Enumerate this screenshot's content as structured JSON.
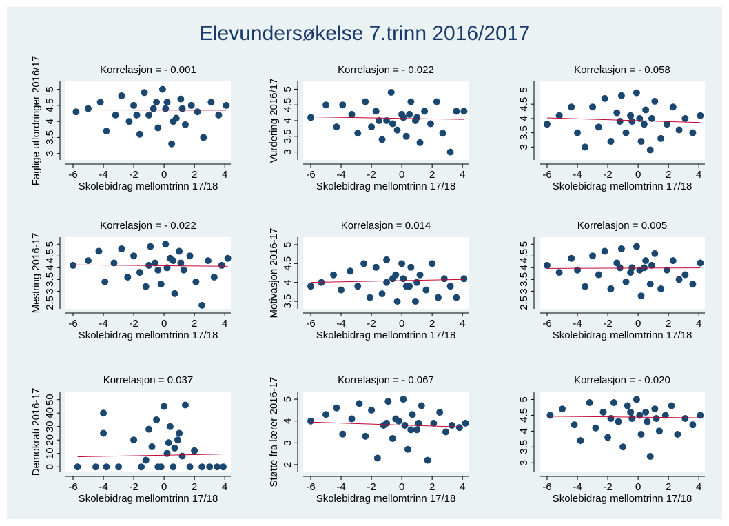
{
  "title": "Elevundersøkelse 7.trinn 2016/2017",
  "chart_data": [
    {
      "type": "scatter",
      "title": "Korrelasjon = - 0.001",
      "x_label": "Skolebidrag mellomtrinn 17/18",
      "y_label": "Faglige utfordringer 2016/17",
      "xlim": [
        -6.5,
        4.4
      ],
      "xticks": [
        -6,
        -4,
        -2,
        0,
        2,
        4
      ],
      "ylim": [
        2.8,
        5.25
      ],
      "yticks": [
        3,
        3.5,
        4,
        4.5,
        5
      ],
      "color": "#1a476f",
      "x": [
        -5.8,
        -5,
        -4.2,
        -3.8,
        -3.2,
        -2.8,
        -2.3,
        -2,
        -1.6,
        -1.3,
        -1,
        -0.7,
        -0.4,
        -0.1,
        0.2,
        0.5,
        0.8,
        1.1,
        1.4,
        1.8,
        2.2,
        2.6,
        3.1,
        3.6,
        4.1,
        -1.8,
        0.1,
        1.2,
        -0.5,
        0.6
      ],
      "values": [
        4.3,
        4.4,
        4.6,
        3.7,
        4.2,
        4.8,
        4.0,
        4.5,
        3.6,
        4.9,
        4.2,
        4.4,
        3.8,
        5.0,
        4.6,
        3.3,
        4.1,
        4.7,
        3.9,
        4.5,
        4.3,
        3.5,
        4.6,
        4.2,
        4.5,
        4.2,
        4.4,
        4.4,
        4.6,
        4.0
      ],
      "fit": {
        "color": "#c10534",
        "x": [
          -5.8,
          4.1
        ],
        "values": [
          4.36,
          4.35
        ]
      }
    },
    {
      "type": "scatter",
      "title": "Korrelasjon = - 0.022",
      "x_label": "Skolebidrag mellomtrinn 17/18",
      "y_label": "Vurdering 2016/17",
      "xlim": [
        -6.5,
        4.4
      ],
      "xticks": [
        -6,
        -4,
        -2,
        0,
        2,
        4
      ],
      "ylim": [
        2.75,
        5.25
      ],
      "yticks": [
        3,
        3.5,
        4,
        4.5,
        5
      ],
      "color": "#1a476f",
      "x": [
        -6,
        -5,
        -4.3,
        -3.9,
        -3.3,
        -2.9,
        -2.4,
        -2,
        -1.7,
        -1.3,
        -1,
        -0.7,
        -0.3,
        0,
        0.3,
        0.6,
        0.9,
        1.2,
        1.5,
        1.9,
        2.3,
        2.7,
        3.2,
        3.6,
        4.1,
        -1.5,
        0.1,
        1,
        -0.6,
        0.5
      ],
      "values": [
        4.1,
        4.5,
        3.8,
        4.5,
        4.2,
        3.6,
        4.6,
        3.8,
        4.3,
        3.4,
        4.0,
        4.9,
        3.7,
        4.2,
        3.5,
        4.6,
        4.0,
        3.3,
        4.3,
        3.9,
        4.6,
        3.6,
        3.0,
        4.3,
        4.3,
        4.0,
        4.1,
        4.1,
        3.9,
        4.2
      ],
      "fit": {
        "color": "#c10534",
        "x": [
          -6,
          4.1
        ],
        "values": [
          4.12,
          4.04
        ]
      }
    },
    {
      "type": "scatter",
      "title": "Korrelasjon = - 0.058",
      "x_label": "Skolebidrag mellomtrinn 17/18",
      "xlim": [
        -6.5,
        4.4
      ],
      "xticks": [
        -6,
        -4,
        -2,
        0,
        2,
        4
      ],
      "ylim": [
        2.55,
        5.3
      ],
      "yticks": [
        3,
        3.5,
        4,
        4.5,
        5
      ],
      "color": "#1a476f",
      "x": [
        -6,
        -5.2,
        -4.4,
        -4,
        -3.5,
        -3,
        -2.6,
        -2.2,
        -1.8,
        -1.4,
        -1.1,
        -0.8,
        -0.4,
        -0.1,
        0.2,
        0.5,
        0.8,
        1.1,
        1.5,
        1.9,
        2.3,
        2.7,
        3.1,
        3.6,
        4.1,
        -1.2,
        0.1,
        0.9,
        -0.5,
        0.4
      ],
      "values": [
        3.8,
        4.1,
        4.4,
        3.5,
        3.0,
        4.4,
        3.7,
        4.7,
        3.2,
        4.2,
        4.8,
        3.5,
        3.9,
        4.9,
        3.2,
        4.3,
        2.9,
        4.6,
        3.3,
        3.8,
        4.4,
        3.6,
        4.0,
        3.5,
        4.1,
        3.9,
        4.0,
        4.0,
        4.1,
        3.8
      ],
      "fit": {
        "color": "#c10534",
        "x": [
          -6,
          4.1
        ],
        "values": [
          4.02,
          3.86
        ]
      }
    },
    {
      "type": "scatter",
      "title": "Korrelasjon = - 0.022",
      "x_label": "Skolebidrag mellomtrinn 17/18",
      "y_label": "Mestring 2016-17",
      "xlim": [
        -6.5,
        4.4
      ],
      "xticks": [
        -6,
        -4,
        -2,
        0,
        2,
        4
      ],
      "ylim": [
        2.25,
        5.3
      ],
      "yticks": [
        2.5,
        3,
        3.5,
        4,
        4.5,
        5
      ],
      "color": "#1a476f",
      "x": [
        -6,
        -5,
        -4.3,
        -3.9,
        -3.3,
        -2.8,
        -2.4,
        -2,
        -1.6,
        -1.2,
        -0.9,
        -0.6,
        -0.2,
        0.1,
        0.4,
        0.7,
        1,
        1.3,
        1.7,
        2.1,
        2.5,
        2.9,
        3.3,
        3.8,
        4.2,
        -1,
        0.2,
        1.1,
        -0.4,
        0.6
      ],
      "values": [
        4.1,
        4.3,
        4.7,
        3.4,
        4.2,
        4.8,
        3.6,
        4.5,
        3.8,
        3.2,
        4.9,
        4.2,
        3.3,
        5.0,
        4.4,
        2.9,
        4.7,
        3.9,
        4.5,
        3.4,
        2.4,
        4.3,
        3.6,
        4.1,
        4.4,
        4.1,
        4.0,
        4.2,
        3.9,
        4.3
      ],
      "fit": {
        "color": "#c10534",
        "x": [
          -6,
          4.2
        ],
        "values": [
          4.12,
          4.06
        ]
      }
    },
    {
      "type": "scatter",
      "title": "Korrelasjon = 0.014",
      "x_label": "Skolebidrag mellomtrinn 17/18",
      "y_label": "Motivasjon 2016-17",
      "xlim": [
        -6.5,
        4.4
      ],
      "xticks": [
        -6,
        -4,
        -2,
        0,
        2,
        4
      ],
      "ylim": [
        3.3,
        5.2
      ],
      "yticks": [
        3.5,
        4,
        4.5,
        5
      ],
      "color": "#1a476f",
      "x": [
        -6,
        -5.3,
        -4.5,
        -4,
        -3.4,
        -2.9,
        -2.5,
        -2.1,
        -1.7,
        -1.3,
        -1,
        -0.6,
        -0.3,
        0,
        0.3,
        0.6,
        0.9,
        1.2,
        1.6,
        2,
        2.4,
        2.8,
        3.2,
        3.6,
        4.1,
        -1,
        0.1,
        1,
        -0.4,
        0.5
      ],
      "values": [
        3.9,
        4.0,
        4.2,
        3.8,
        4.3,
        3.9,
        4.5,
        3.6,
        4.4,
        3.7,
        4.6,
        4.1,
        3.5,
        4.5,
        3.9,
        4.4,
        3.5,
        4.2,
        3.8,
        4.5,
        3.6,
        4.1,
        3.9,
        3.6,
        4.1,
        4.0,
        4.1,
        4.0,
        4.2,
        3.9
      ],
      "fit": {
        "color": "#c10534",
        "x": [
          -6,
          4.1
        ],
        "values": [
          4.0,
          4.08
        ]
      }
    },
    {
      "type": "scatter",
      "title": "Korrelasjon = 0.005",
      "x_label": "Skolebidrag mellomtrinn 17/18",
      "xlim": [
        -6.5,
        4.4
      ],
      "xticks": [
        -6,
        -4,
        -2,
        0,
        2,
        4
      ],
      "ylim": [
        2.25,
        5.3
      ],
      "yticks": [
        2.5,
        3,
        3.5,
        4,
        4.5,
        5
      ],
      "color": "#1a476f",
      "x": [
        -6,
        -5.2,
        -4.4,
        -4,
        -3.5,
        -3,
        -2.6,
        -2.2,
        -1.8,
        -1.4,
        -1.1,
        -0.8,
        -0.4,
        -0.1,
        0.2,
        0.5,
        0.8,
        1.1,
        1.5,
        1.9,
        2.3,
        2.7,
        3.1,
        3.6,
        4.1,
        -1.2,
        0.1,
        0.9,
        -0.5,
        0.4
      ],
      "values": [
        4.1,
        3.8,
        4.4,
        3.9,
        3.2,
        4.5,
        3.7,
        4.7,
        3.1,
        4.2,
        4.8,
        3.4,
        4.0,
        4.9,
        2.8,
        4.3,
        3.3,
        4.6,
        3.1,
        3.9,
        4.3,
        3.5,
        3.7,
        3.3,
        4.2,
        4.0,
        3.9,
        4.1,
        3.8,
        4.0
      ],
      "fit": {
        "color": "#c10534",
        "x": [
          -6,
          4.1
        ],
        "values": [
          3.97,
          3.99
        ]
      }
    },
    {
      "type": "scatter",
      "title": "Korrelasjon = 0.037",
      "x_label": "Skolebidrag mellomtrinn 17/18",
      "y_label": "Demokrati 2016-17",
      "xlim": [
        -6.5,
        4.4
      ],
      "xticks": [
        -6,
        -4,
        -2,
        0,
        2,
        4
      ],
      "ylim": [
        -4,
        56
      ],
      "yticks": [
        0,
        10,
        20,
        30,
        40,
        50
      ],
      "color": "#1a476f",
      "x": [
        -5.7,
        -4.5,
        -4,
        -4,
        -3.8,
        -3,
        -2,
        -1.5,
        -1,
        -0.8,
        -0.5,
        -0.2,
        0,
        0.2,
        0.4,
        0.6,
        0.9,
        1.2,
        1.4,
        1.7,
        2,
        2.5,
        3,
        3.5,
        3.9,
        -1.2,
        0.3,
        1,
        -0.4,
        0.7
      ],
      "values": [
        0,
        0,
        40,
        25,
        0,
        0,
        20,
        0,
        28,
        15,
        35,
        0,
        45,
        10,
        30,
        0,
        20,
        8,
        46,
        0,
        12,
        0,
        0,
        0,
        0,
        5,
        18,
        25,
        0,
        14
      ],
      "fit": {
        "color": "#c10534",
        "x": [
          -5.7,
          3.9
        ],
        "values": [
          7.5,
          9.5
        ]
      }
    },
    {
      "type": "scatter",
      "title": "Korrelasjon = - 0.067",
      "x_label": "Skolebidrag mellomtrinn 17/18",
      "y_label": "Støtte fra lærer 2016-17",
      "xlim": [
        -6.5,
        4.4
      ],
      "xticks": [
        -6,
        -4,
        -2,
        0,
        2,
        4
      ],
      "ylim": [
        1.65,
        5.35
      ],
      "yticks": [
        2,
        3,
        4,
        5
      ],
      "color": "#1a476f",
      "x": [
        -6,
        -5,
        -4.3,
        -3.9,
        -3.3,
        -2.8,
        -2.4,
        -2,
        -1.6,
        -1.2,
        -0.9,
        -0.6,
        -0.2,
        0.1,
        0.4,
        0.7,
        1,
        1.3,
        1.7,
        2.1,
        2.5,
        2.9,
        3.3,
        3.8,
        4.2,
        -1,
        0.2,
        1.1,
        -0.4,
        0.6
      ],
      "values": [
        4,
        4.3,
        4.6,
        3.4,
        4.1,
        4.8,
        3.3,
        4.5,
        2.3,
        3.8,
        4.9,
        3.2,
        4.0,
        5.0,
        2.7,
        4.3,
        3.6,
        4.7,
        2.2,
        3.9,
        4.4,
        3.5,
        3.8,
        3.7,
        3.9,
        3.9,
        3.8,
        3.9,
        4.1,
        3.6
      ],
      "fit": {
        "color": "#c10534",
        "x": [
          -6,
          4.2
        ],
        "values": [
          3.95,
          3.72
        ]
      }
    },
    {
      "type": "scatter",
      "title": "Korrelasjon = - 0.020",
      "x_label": "Skolebidrag mellomtrinn 17/18",
      "xlim": [
        -6.5,
        4.4
      ],
      "xticks": [
        -6,
        -4,
        -2,
        0,
        2,
        4
      ],
      "ylim": [
        2.7,
        5.25
      ],
      "yticks": [
        3,
        3.5,
        4,
        4.5,
        5
      ],
      "color": "#1a476f",
      "x": [
        -5.8,
        -5,
        -4.2,
        -3.8,
        -3.2,
        -2.8,
        -2.3,
        -2,
        -1.6,
        -1.3,
        -1,
        -0.7,
        -0.4,
        -0.1,
        0.2,
        0.5,
        0.8,
        1.1,
        1.4,
        1.8,
        2.2,
        2.6,
        3.1,
        3.6,
        4.1,
        -1.8,
        0.1,
        1.2,
        -0.5,
        0.6
      ],
      "values": [
        4.5,
        4.7,
        4.2,
        3.7,
        4.9,
        4.1,
        4.6,
        3.8,
        4.9,
        4.3,
        3.5,
        4.8,
        4.4,
        5.0,
        3.9,
        4.6,
        3.2,
        4.7,
        4.0,
        4.5,
        4.8,
        3.9,
        4.4,
        4.2,
        4.5,
        4.4,
        4.5,
        4.4,
        4.6,
        4.3
      ],
      "fit": {
        "color": "#c10534",
        "x": [
          -6,
          4.1
        ],
        "values": [
          4.47,
          4.42
        ]
      }
    }
  ]
}
